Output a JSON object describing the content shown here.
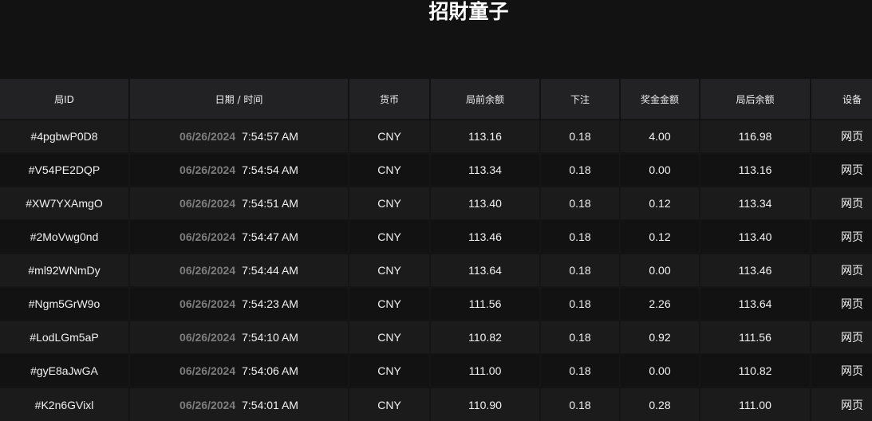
{
  "title": "招財童子",
  "columns": [
    "局ID",
    "日期 / 时间",
    "货币",
    "局前余额",
    "下注",
    "奖金金额",
    "局后余额",
    "设备"
  ],
  "rows": [
    [
      "#4pgbwP0D8",
      "06/26/2024",
      "7:54:57 AM",
      "CNY",
      "113.16",
      "0.18",
      "4.00",
      "116.98",
      "网页"
    ],
    [
      "#V54PE2DQP",
      "06/26/2024",
      "7:54:54 AM",
      "CNY",
      "113.34",
      "0.18",
      "0.00",
      "113.16",
      "网页"
    ],
    [
      "#XW7YXAmgO",
      "06/26/2024",
      "7:54:51 AM",
      "CNY",
      "113.40",
      "0.18",
      "0.12",
      "113.34",
      "网页"
    ],
    [
      "#2MoVwg0nd",
      "06/26/2024",
      "7:54:47 AM",
      "CNY",
      "113.46",
      "0.18",
      "0.12",
      "113.40",
      "网页"
    ],
    [
      "#ml92WNmDy",
      "06/26/2024",
      "7:54:44 AM",
      "CNY",
      "113.64",
      "0.18",
      "0.00",
      "113.46",
      "网页"
    ],
    [
      "#Ngm5GrW9o",
      "06/26/2024",
      "7:54:23 AM",
      "CNY",
      "111.56",
      "0.18",
      "2.26",
      "113.64",
      "网页"
    ],
    [
      "#LodLGm5aP",
      "06/26/2024",
      "7:54:10 AM",
      "CNY",
      "110.82",
      "0.18",
      "0.92",
      "111.56",
      "网页"
    ],
    [
      "#gyE8aJwGA",
      "06/26/2024",
      "7:54:06 AM",
      "CNY",
      "111.00",
      "0.18",
      "0.00",
      "110.82",
      "网页"
    ],
    [
      "#K2n6GVixl",
      "06/26/2024",
      "7:54:01 AM",
      "CNY",
      "110.90",
      "0.18",
      "0.28",
      "111.00",
      "网页"
    ]
  ]
}
